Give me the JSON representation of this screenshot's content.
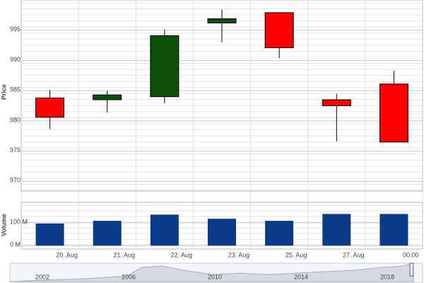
{
  "chart_data": {
    "type": "candlestick",
    "y_label": "Price",
    "categories": [
      "20. Aug",
      "21. Aug",
      "22. Aug",
      "23. Aug",
      "25. Aug",
      "27. Aug",
      "00:00"
    ],
    "open": [
      983.8,
      983.5,
      984.0,
      996.2,
      997.9,
      983.5,
      986.1
    ],
    "high": [
      985.1,
      985.0,
      995.1,
      998.4,
      997.9,
      984.5,
      988.3
    ],
    "low": [
      978.7,
      981.4,
      982.9,
      993.0,
      990.4,
      976.6,
      976.5
    ],
    "close": [
      980.6,
      984.3,
      994.1,
      996.9,
      992.1,
      982.5,
      976.5
    ],
    "up_color": "#0b4f0b",
    "down_color": "#ff0000",
    "ylim": [
      968.4,
      1000
    ],
    "yticks": [
      970,
      975,
      980,
      985,
      990,
      995
    ],
    "grid": true,
    "volume": {
      "y_label": "Volume",
      "values": [
        97,
        109,
        136,
        118,
        109,
        139,
        139
      ],
      "color": "#0b3a8a",
      "ylim": [
        -15,
        190
      ],
      "yticks": [
        {
          "value": 0,
          "label": "0 M"
        },
        {
          "value": 100,
          "label": "100 M"
        }
      ]
    },
    "navigator": {
      "labels": [
        "2002",
        "2006",
        "2010",
        "2014",
        "2018"
      ]
    }
  }
}
